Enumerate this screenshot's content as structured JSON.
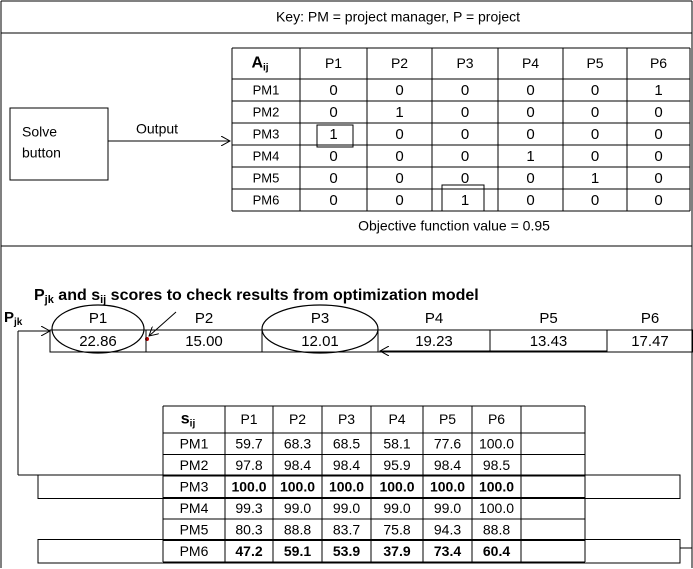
{
  "key": "Key: PM = project manager, P = project",
  "solve_button": {
    "line1": "Solve",
    "line2": "button"
  },
  "output_label": "Output",
  "assignment_table": {
    "symbol": "A",
    "sub": "ij",
    "columns": [
      "P1",
      "P2",
      "P3",
      "P4",
      "P5",
      "P6"
    ],
    "rows": [
      {
        "label": "PM1",
        "cells": [
          "0",
          "0",
          "0",
          "0",
          "0",
          "1"
        ]
      },
      {
        "label": "PM2",
        "cells": [
          "0",
          "1",
          "0",
          "0",
          "0",
          "0"
        ]
      },
      {
        "label": "PM3",
        "cells": [
          "1",
          "0",
          "0",
          "0",
          "0",
          "0"
        ]
      },
      {
        "label": "PM4",
        "cells": [
          "0",
          "0",
          "0",
          "1",
          "0",
          "0"
        ]
      },
      {
        "label": "PM5",
        "cells": [
          "0",
          "0",
          "0",
          "0",
          "1",
          "0"
        ]
      },
      {
        "label": "PM6",
        "cells": [
          "0",
          "0",
          "1",
          "0",
          "0",
          "0"
        ]
      }
    ]
  },
  "objective": "Objective function value = 0.95",
  "title": {
    "parts": [
      "P",
      "jk",
      " and s",
      "ij",
      "  scores to check results from optimization model"
    ]
  },
  "pjk_row": {
    "symbol": "P",
    "sub": "jk",
    "columns": [
      "P1",
      "P2",
      "P3",
      "P4",
      "P5",
      "P6"
    ],
    "values": [
      "22.86",
      "15.00",
      "12.01",
      "19.23",
      "13.43",
      "17.47"
    ]
  },
  "score_table": {
    "symbol": "s",
    "sub": "ij",
    "columns": [
      "P1",
      "P2",
      "P3",
      "P4",
      "P5",
      "P6"
    ],
    "rows": [
      {
        "label": "PM1",
        "cells": [
          "59.7",
          "68.3",
          "68.5",
          "58.1",
          "77.6",
          "100.0"
        ]
      },
      {
        "label": "PM2",
        "cells": [
          "97.8",
          "98.4",
          "98.4",
          "95.9",
          "98.4",
          "98.5"
        ]
      },
      {
        "label": "PM3",
        "cells": [
          "100.0",
          "100.0",
          "100.0",
          "100.0",
          "100.0",
          "100.0"
        ]
      },
      {
        "label": "PM4",
        "cells": [
          "99.3",
          "99.0",
          "99.0",
          "99.0",
          "99.0",
          "100.0"
        ]
      },
      {
        "label": "PM5",
        "cells": [
          "80.3",
          "88.8",
          "83.7",
          "75.8",
          "94.3",
          "88.8"
        ]
      },
      {
        "label": "PM6",
        "cells": [
          "47.2",
          "59.1",
          "53.9",
          "37.9",
          "73.4",
          "60.4"
        ]
      }
    ]
  }
}
